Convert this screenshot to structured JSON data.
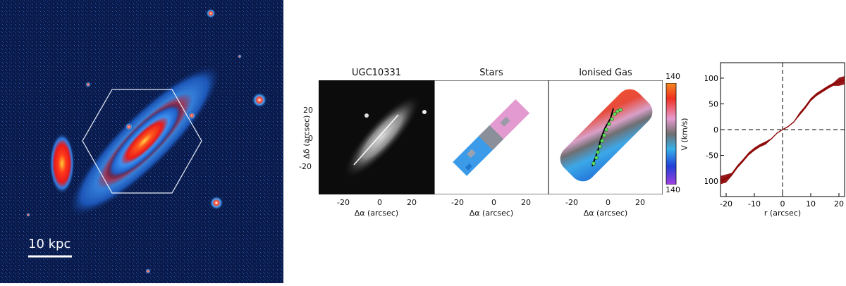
{
  "survey_image": {
    "scale_bar_label": "10 kpc"
  },
  "panels": {
    "optical": {
      "title": "UGC10331",
      "xlabel": "Δα  (arcsec)",
      "ylabel": "Δδ  (arcsec)"
    },
    "stars": {
      "title": "Stars",
      "xlabel": "Δα  (arcsec)"
    },
    "gas": {
      "title": "Ionised Gas",
      "xlabel": "Δα  (arcsec)"
    }
  },
  "colorbar": {
    "label": "V  (km/s)",
    "top_label": "140",
    "bottom_label": "140"
  },
  "axis_ticks": {
    "map_x": [
      "-20",
      "0",
      "20"
    ],
    "map_y": [
      "20",
      "0",
      "-20"
    ]
  },
  "chart_data": {
    "type": "line",
    "xlabel": "r  (arcsec)",
    "ylabel": "",
    "xlim": [
      -22,
      22
    ],
    "ylim": [
      -130,
      130
    ],
    "xticks": [
      -20,
      -10,
      0,
      10,
      20
    ],
    "yticks": [
      -100,
      -50,
      0,
      50,
      100
    ],
    "reference_lines": {
      "x": 0,
      "y": 0,
      "style": "dashed"
    },
    "series": [
      {
        "x": [
          -22,
          -20,
          -18,
          -16,
          -14,
          -12,
          -10,
          -8,
          -6,
          -4,
          -2,
          0,
          2,
          4,
          6,
          8,
          10,
          12,
          14,
          16,
          18,
          20,
          22
        ],
        "y": [
          -98,
          -95,
          -87,
          -72,
          -60,
          -47,
          -38,
          -31,
          -26,
          -18,
          -7,
          0,
          6,
          15,
          30,
          43,
          58,
          68,
          75,
          82,
          88,
          93,
          96
        ],
        "color": "#8b0000"
      }
    ]
  },
  "colors": {
    "survey_background": "#0a1a4a",
    "velocity_positive": "#e8352d",
    "velocity_negative": "#2b8fe3",
    "rotation_curve": "#8b0000"
  }
}
